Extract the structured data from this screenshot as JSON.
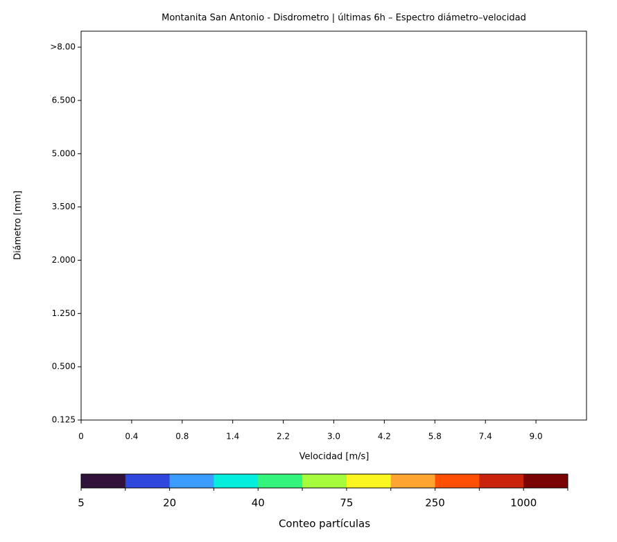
{
  "chart_data": {
    "type": "heatmap",
    "title": "Montanita San Antonio - Disdrometro | últimas 6h – Espectro diámetro–velocidad",
    "xlabel": "Velocidad [m/s]",
    "ylabel": "Diámetro [mm]",
    "xlim": [
      0,
      10
    ],
    "xticks": [
      {
        "value": 0,
        "label": "0"
      },
      {
        "value": 1,
        "label": "0.4"
      },
      {
        "value": 2,
        "label": "0.8"
      },
      {
        "value": 3,
        "label": "1.4"
      },
      {
        "value": 4,
        "label": "2.2"
      },
      {
        "value": 5,
        "label": "3.0"
      },
      {
        "value": 6,
        "label": "4.2"
      },
      {
        "value": 7,
        "label": "5.8"
      },
      {
        "value": 8,
        "label": "7.4"
      },
      {
        "value": 9,
        "label": "9.0"
      }
    ],
    "ylim": [
      0,
      7.3
    ],
    "yticks": [
      {
        "value": 0,
        "label": "0.125"
      },
      {
        "value": 1,
        "label": "0.500"
      },
      {
        "value": 2,
        "label": "1.250"
      },
      {
        "value": 3,
        "label": "2.000"
      },
      {
        "value": 4,
        "label": "3.500"
      },
      {
        "value": 5,
        "label": "5.000"
      },
      {
        "value": 6,
        "label": "6.500"
      },
      {
        "value": 7,
        "label": ">8.00"
      }
    ],
    "colorbar": {
      "label": "Conteo partículas",
      "colors": [
        "#30123b",
        "#3047de",
        "#3b9dff",
        "#04eedd",
        "#34f57c",
        "#a4fc3c",
        "#fbf520",
        "#fea531",
        "#ff4f02",
        "#c9230c",
        "#7a0403"
      ],
      "ticks": [
        5,
        20,
        40,
        75,
        250,
        1000
      ]
    }
  }
}
